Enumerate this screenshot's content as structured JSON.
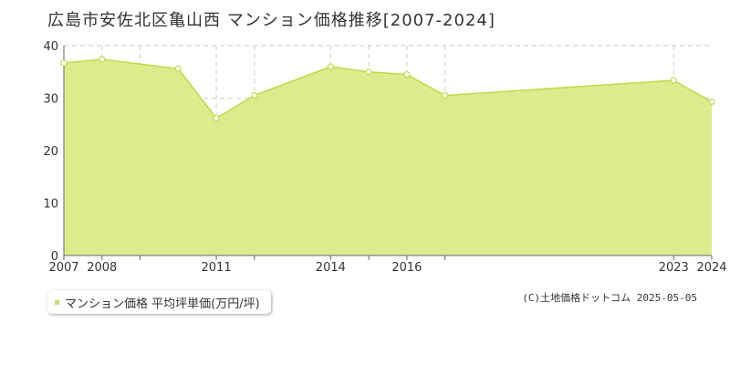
{
  "title": "広島市安佐北区亀山西 マンション価格推移[2007-2024]",
  "legend": {
    "label": "マンション価格 平均坪単価(万円/坪)"
  },
  "credit": "(C)土地価格ドットコム 2025-05-05",
  "colors": {
    "fill": "#dbeb8e",
    "line": "#bcdc48",
    "marker_fill": "#ffffff",
    "legend_marker": "#c5e06a",
    "grid": "#cccccc",
    "axis": "#666666"
  },
  "chart_data": {
    "type": "area",
    "x": [
      2007,
      2008,
      2010,
      2011,
      2012,
      2014,
      2015,
      2016,
      2017,
      2023,
      2024
    ],
    "x_ticks": [
      2007,
      2008,
      2009,
      2011,
      2012,
      2014,
      2015,
      2016,
      2017,
      2023,
      2024
    ],
    "x_tick_labels": [
      "2007",
      "2008",
      "",
      "2011",
      "",
      "2014",
      "",
      "2016",
      "",
      "2023",
      "2024"
    ],
    "xlim": [
      2007,
      2024
    ],
    "series": [
      {
        "values": [
          36.7,
          37.4,
          35.6,
          26.2,
          30.5,
          36.0,
          35.0,
          34.5,
          30.5,
          33.4,
          29.3
        ]
      }
    ],
    "ylim": [
      0,
      40
    ],
    "y_ticks": [
      0,
      10,
      20,
      30,
      40
    ],
    "grid": true,
    "legend_position": "bottom-left"
  }
}
